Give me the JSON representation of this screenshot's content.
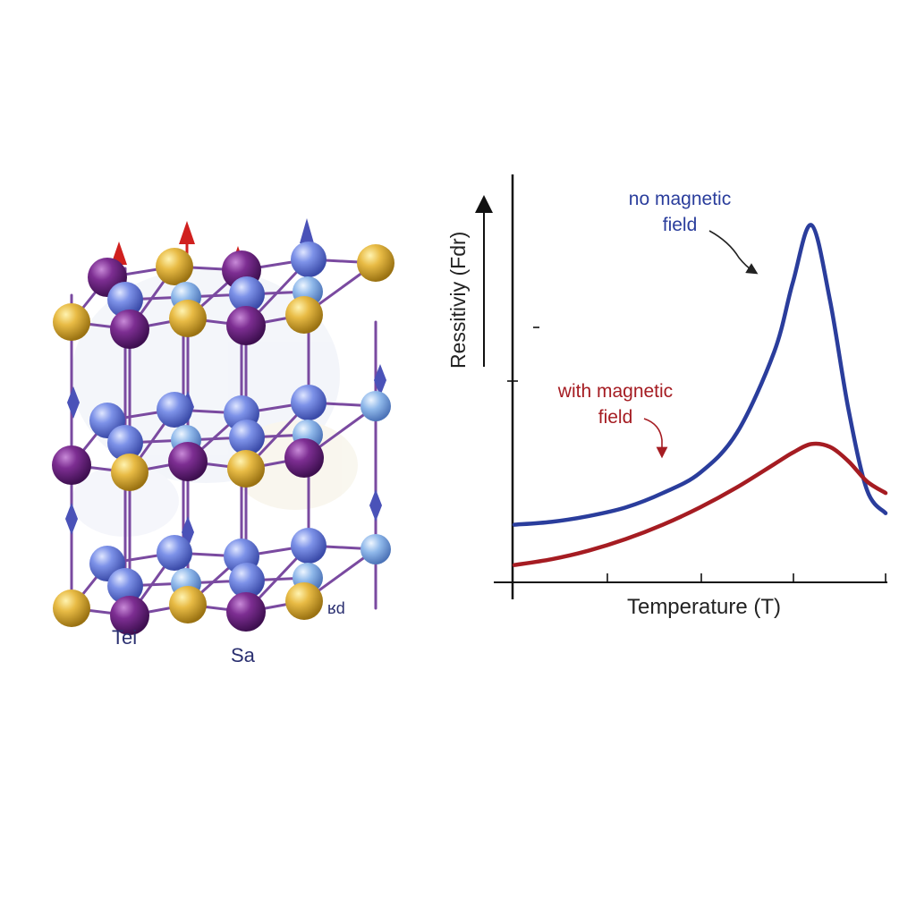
{
  "lattice": {
    "labels": [
      "Tei",
      "Sa",
      "ʁd"
    ],
    "colors": {
      "gold": "#e0b23a",
      "purple": "#7a2a8e",
      "blue": "#6f84e0",
      "bond": "#7a4aa0",
      "spin_red": "#d0201e",
      "spin_blue": "#4a52b8"
    }
  },
  "chart": {
    "ylabel": "Ressitiviy (Fdr)",
    "xlabel": "Temperature (T)",
    "annotations": {
      "blue_line1": "no magnetic",
      "blue_line2": "field",
      "red_line1": "with magnetic",
      "red_line2": "field"
    },
    "colors": {
      "blue": "#2a3d9c",
      "red": "#a51c22",
      "axis": "#111111"
    }
  },
  "chart_data": {
    "type": "line",
    "xlabel": "Temperature (T)",
    "ylabel": "Ressitiviy (Fdr)",
    "series": [
      {
        "name": "no magnetic field",
        "x": [
          0,
          2,
          4,
          6,
          8,
          10,
          12,
          14,
          15,
          16,
          17,
          18,
          19,
          20
        ],
        "y": [
          1.0,
          1.05,
          1.15,
          1.3,
          1.55,
          1.9,
          2.6,
          4.0,
          5.2,
          6.2,
          4.9,
          3.0,
          1.6,
          1.2
        ]
      },
      {
        "name": "with magnetic field",
        "x": [
          0,
          2,
          4,
          6,
          8,
          10,
          12,
          14,
          15,
          16,
          17,
          18,
          19,
          20
        ],
        "y": [
          0.3,
          0.4,
          0.55,
          0.75,
          1.0,
          1.3,
          1.65,
          2.05,
          2.25,
          2.4,
          2.35,
          2.1,
          1.75,
          1.55
        ]
      }
    ],
    "xlim": [
      0,
      20
    ],
    "ylim": [
      0,
      7
    ],
    "grid": false
  }
}
